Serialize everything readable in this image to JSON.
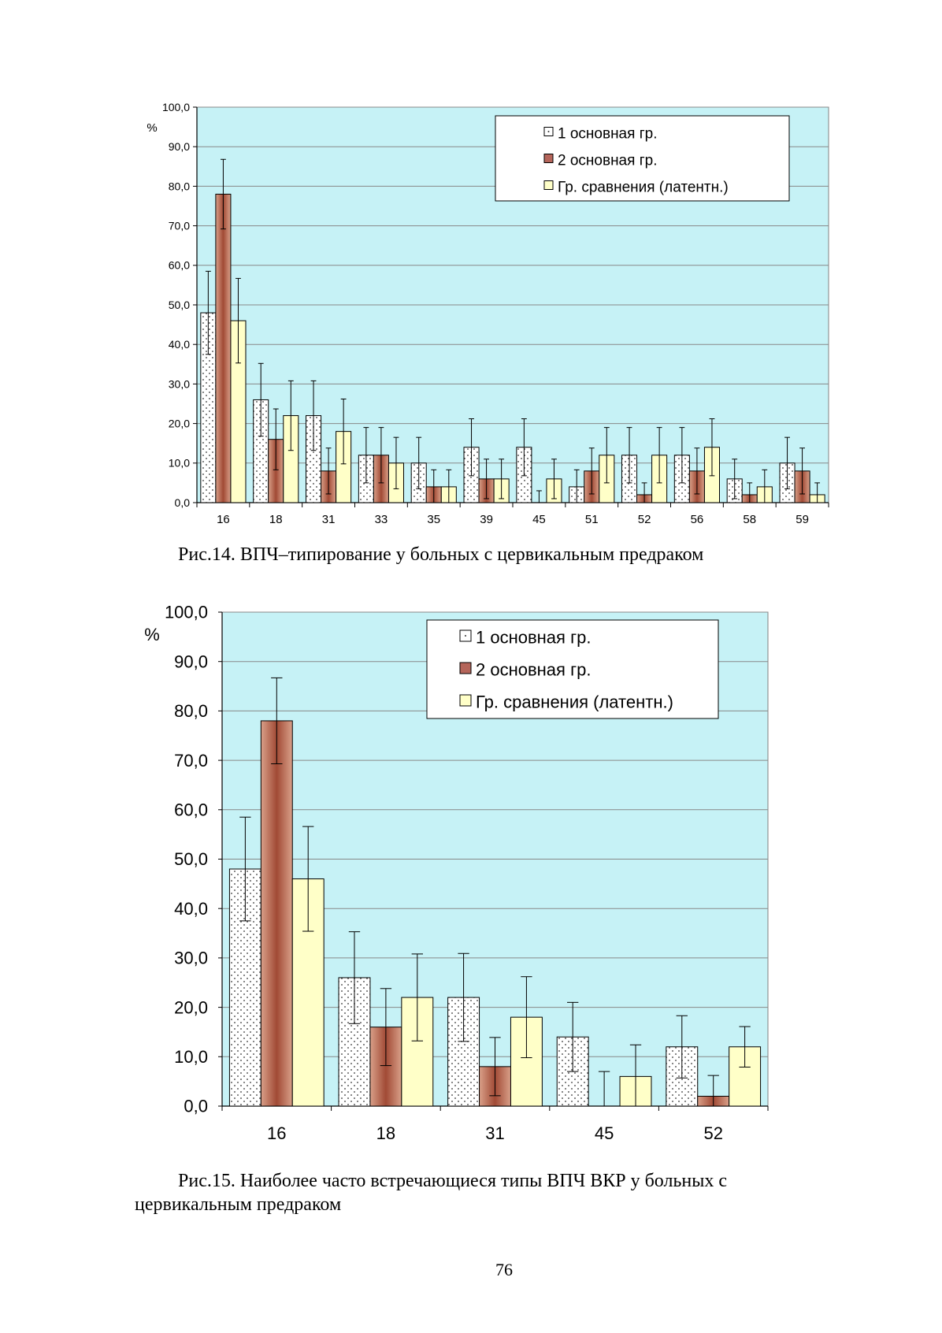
{
  "colors": {
    "plot_bg": "#c6f2f6",
    "series1": "#ffffff",
    "series2": "#b5655a",
    "series3": "#ffffc8",
    "gridline": "#888888"
  },
  "chart_data": [
    {
      "type": "bar",
      "ylabel": "%",
      "ylim": [
        0,
        100
      ],
      "yticks": [
        "0,0",
        "10,0",
        "20,0",
        "30,0",
        "40,0",
        "50,0",
        "60,0",
        "70,0",
        "80,0",
        "90,0",
        "100,0"
      ],
      "grid": true,
      "legend_position": "top-right",
      "categories": [
        "16",
        "18",
        "31",
        "33",
        "35",
        "39",
        "45",
        "51",
        "52",
        "56",
        "58",
        "59"
      ],
      "series": [
        {
          "name": "1 основная гр.",
          "values": [
            48,
            26,
            22,
            12,
            10,
            14,
            14,
            4,
            12,
            12,
            6,
            10
          ],
          "errors": [
            10.5,
            9.2,
            8.8,
            7,
            6.5,
            7.2,
            7.2,
            4.3,
            7,
            7,
            5,
            6.5
          ]
        },
        {
          "name": "2 основная гр.",
          "values": [
            78,
            16,
            8,
            12,
            4,
            6,
            0,
            8,
            2,
            8,
            2,
            8
          ],
          "errors": [
            8.8,
            7.7,
            5.8,
            7,
            4.3,
            5,
            3,
            5.8,
            3,
            5.8,
            3,
            5.8
          ]
        },
        {
          "name": "Гр. сравнения (латентн.)",
          "values": [
            46,
            22,
            18,
            10,
            4,
            6,
            6,
            12,
            12,
            14,
            4,
            2
          ],
          "errors": [
            10.7,
            8.8,
            8.2,
            6.5,
            4.3,
            5,
            5,
            7,
            7,
            7.2,
            4.3,
            3
          ]
        }
      ]
    },
    {
      "type": "bar",
      "ylabel": "%",
      "ylim": [
        0,
        100
      ],
      "yticks": [
        "0,0",
        "10,0",
        "20,0",
        "30,0",
        "40,0",
        "50,0",
        "60,0",
        "70,0",
        "80,0",
        "90,0",
        "100,0"
      ],
      "grid": true,
      "legend_position": "top-right",
      "categories": [
        "16",
        "18",
        "31",
        "45",
        "52"
      ],
      "series": [
        {
          "name": "1 основная гр.",
          "values": [
            48,
            26,
            22,
            14,
            12
          ],
          "errors": [
            10.5,
            9.3,
            8.9,
            7,
            6.3
          ]
        },
        {
          "name": "2 основная гр.",
          "values": [
            78,
            16,
            8,
            0,
            2
          ],
          "errors": [
            8.7,
            7.8,
            5.9,
            7,
            4.2
          ]
        },
        {
          "name": "Гр. сравнения (латентн.)",
          "values": [
            46,
            22,
            18,
            6,
            12
          ],
          "errors": [
            10.6,
            8.8,
            8.2,
            6.4,
            4.1
          ]
        }
      ]
    }
  ],
  "captions": {
    "fig14": "Рис.14. ВПЧ–типирование у больных с цервикальным предраком",
    "fig15": "Рис.15. Наиболее часто встречающиеся типы ВПЧ ВКР у больных с цервикальным предраком"
  },
  "page_number": "76"
}
